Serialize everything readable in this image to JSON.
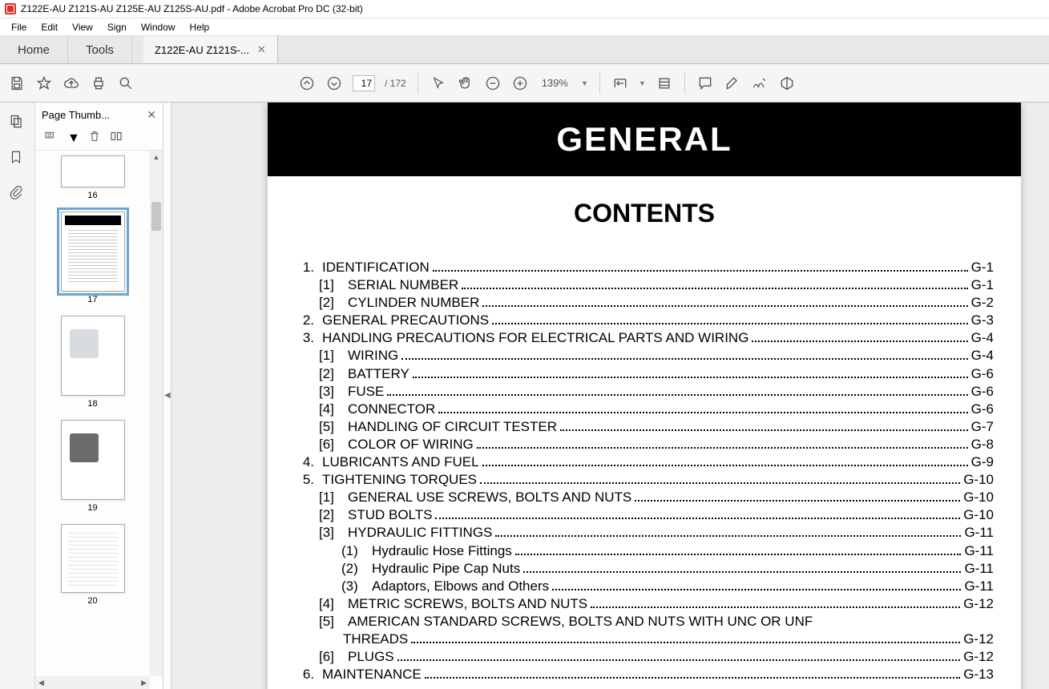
{
  "window": {
    "title": "Z122E-AU Z121S-AU Z125E-AU Z125S-AU.pdf - Adobe Acrobat Pro DC (32-bit)"
  },
  "menu": {
    "items": [
      "File",
      "Edit",
      "View",
      "Sign",
      "Window",
      "Help"
    ]
  },
  "tabs": {
    "home_label": "Home",
    "tools_label": "Tools",
    "doc_label": "Z122E-AU Z121S-..."
  },
  "toolbar": {
    "page_current": "17",
    "page_total": "/  172",
    "zoom_pct": "139%"
  },
  "thumbpanel": {
    "title": "Page Thumb...",
    "pages": [
      {
        "label": "16",
        "cls": "p16",
        "selected": false
      },
      {
        "label": "17",
        "cls": "p17",
        "selected": true
      },
      {
        "label": "18",
        "cls": "p18",
        "selected": false
      },
      {
        "label": "19",
        "cls": "p19",
        "selected": false
      },
      {
        "label": "20",
        "cls": "p20",
        "selected": false
      }
    ]
  },
  "document": {
    "band_title": "GENERAL",
    "contents_title": "CONTENTS",
    "toc": [
      {
        "lvl": 0,
        "num": "1.",
        "txt": "IDENTIFICATION",
        "pg": "G-1"
      },
      {
        "lvl": 1,
        "num": "[1]",
        "txt": "SERIAL NUMBER",
        "pg": "G-1"
      },
      {
        "lvl": 1,
        "num": "[2]",
        "txt": "CYLINDER NUMBER",
        "pg": "G-2"
      },
      {
        "lvl": 0,
        "num": "2.",
        "txt": "GENERAL PRECAUTIONS",
        "pg": "G-3"
      },
      {
        "lvl": 0,
        "num": "3.",
        "txt": "HANDLING PRECAUTIONS FOR ELECTRICAL PARTS AND WIRING",
        "pg": "G-4"
      },
      {
        "lvl": 1,
        "num": "[1]",
        "txt": "WIRING",
        "pg": "G-4"
      },
      {
        "lvl": 1,
        "num": "[2]",
        "txt": "BATTERY",
        "pg": "G-6"
      },
      {
        "lvl": 1,
        "num": "[3]",
        "txt": "FUSE",
        "pg": "G-6"
      },
      {
        "lvl": 1,
        "num": "[4]",
        "txt": "CONNECTOR",
        "pg": "G-6"
      },
      {
        "lvl": 1,
        "num": "[5]",
        "txt": "HANDLING OF CIRCUIT TESTER",
        "pg": "G-7"
      },
      {
        "lvl": 1,
        "num": "[6]",
        "txt": "COLOR OF WIRING",
        "pg": "G-8"
      },
      {
        "lvl": 0,
        "num": "4.",
        "txt": "LUBRICANTS AND FUEL",
        "pg": "G-9"
      },
      {
        "lvl": 0,
        "num": "5.",
        "txt": "TIGHTENING TORQUES",
        "pg": "G-10"
      },
      {
        "lvl": 1,
        "num": "[1]",
        "txt": "GENERAL USE SCREWS, BOLTS AND NUTS",
        "pg": "G-10"
      },
      {
        "lvl": 1,
        "num": "[2]",
        "txt": "STUD BOLTS",
        "pg": "G-10"
      },
      {
        "lvl": 1,
        "num": "[3]",
        "txt": "HYDRAULIC FITTINGS",
        "pg": "G-11"
      },
      {
        "lvl": 2,
        "num": "(1)",
        "txt": "Hydraulic Hose Fittings",
        "pg": "G-11"
      },
      {
        "lvl": 2,
        "num": "(2)",
        "txt": "Hydraulic Pipe Cap Nuts",
        "pg": "G-11"
      },
      {
        "lvl": 2,
        "num": "(3)",
        "txt": "Adaptors, Elbows and Others",
        "pg": "G-11"
      },
      {
        "lvl": 1,
        "num": "[4]",
        "txt": "METRIC SCREWS, BOLTS AND NUTS",
        "pg": "G-12"
      },
      {
        "lvl": 1,
        "num": "[5]",
        "txt": "AMERICAN STANDARD SCREWS, BOLTS AND NUTS WITH UNC OR UNF",
        "pg": ""
      },
      {
        "lvl": 1,
        "num": "",
        "txt": "THREADS",
        "pg": "G-12",
        "wrap": true
      },
      {
        "lvl": 1,
        "num": "[6]",
        "txt": "PLUGS",
        "pg": "G-12"
      },
      {
        "lvl": 0,
        "num": "6.",
        "txt": "MAINTENANCE",
        "pg": "G-13"
      }
    ]
  }
}
